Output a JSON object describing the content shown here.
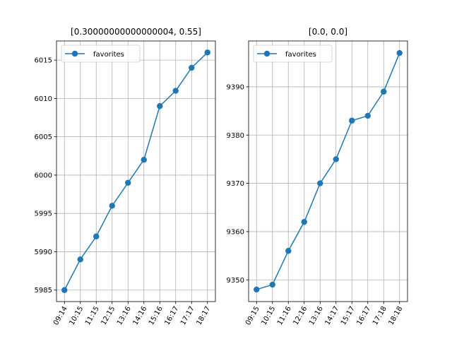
{
  "chart_data": [
    {
      "type": "line",
      "title": "[0.30000000000000004, 0.55]",
      "xlabel": "",
      "ylabel": "",
      "categories": [
        "09:14",
        "10:15",
        "11:15",
        "12:15",
        "13:16",
        "14:16",
        "15:16",
        "16:17",
        "17:17",
        "18:17"
      ],
      "series": [
        {
          "name": "favorites",
          "values": [
            5985,
            5989,
            5992,
            5996,
            5999,
            6002,
            6009,
            6011,
            6014,
            6016
          ]
        }
      ],
      "ylim": [
        5983.5,
        6017.5
      ],
      "yticks": [
        5985,
        5990,
        5995,
        6000,
        6005,
        6010,
        6015
      ],
      "grid": true,
      "legend": "top-left",
      "color": "#1f77b4"
    },
    {
      "type": "line",
      "title": "[0.0, 0.0]",
      "xlabel": "",
      "ylabel": "",
      "categories": [
        "09:15",
        "10:15",
        "11:16",
        "12:16",
        "13:16",
        "14:17",
        "15:17",
        "16:17",
        "17:18",
        "18:18"
      ],
      "series": [
        {
          "name": "favorites",
          "values": [
            9348,
            9349,
            9356,
            9362,
            9370,
            9375,
            9383,
            9384,
            9389,
            9397
          ]
        }
      ],
      "ylim": [
        9345.5,
        9399.5
      ],
      "yticks": [
        9350,
        9360,
        9370,
        9380,
        9390
      ],
      "grid": true,
      "legend": "top-left",
      "color": "#1f77b4"
    }
  ]
}
